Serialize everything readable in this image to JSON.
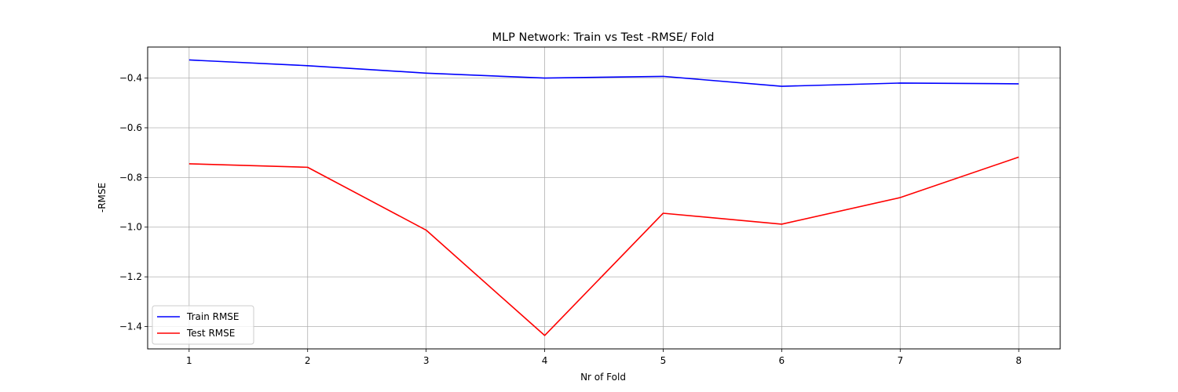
{
  "chart_data": {
    "type": "line",
    "title": "MLP Network: Train vs Test -RMSE/ Fold",
    "xlabel": "Nr of Fold",
    "ylabel": "-RMSE",
    "x": [
      1,
      2,
      3,
      4,
      5,
      6,
      7,
      8
    ],
    "xlim": [
      0.65,
      8.35
    ],
    "ylim": [
      -1.49,
      -0.275
    ],
    "xticks": [
      1,
      2,
      3,
      4,
      5,
      6,
      7,
      8
    ],
    "yticks": [
      -1.4,
      -1.2,
      -1.0,
      -0.8,
      -0.6,
      -0.4
    ],
    "ytick_labels": [
      "−1.4",
      "−1.2",
      "−1.0",
      "−0.8",
      "−0.6",
      "−0.4"
    ],
    "grid": true,
    "legend_position": "lower-left",
    "series": [
      {
        "name": "Train RMSE",
        "color": "#0000ff",
        "values": [
          -0.327,
          -0.35,
          -0.38,
          -0.4,
          -0.393,
          -0.433,
          -0.42,
          -0.423
        ]
      },
      {
        "name": "Test RMSE",
        "color": "#ff0000",
        "values": [
          -0.745,
          -0.759,
          -1.012,
          -1.436,
          -0.944,
          -0.988,
          -0.881,
          -0.718
        ]
      }
    ]
  }
}
